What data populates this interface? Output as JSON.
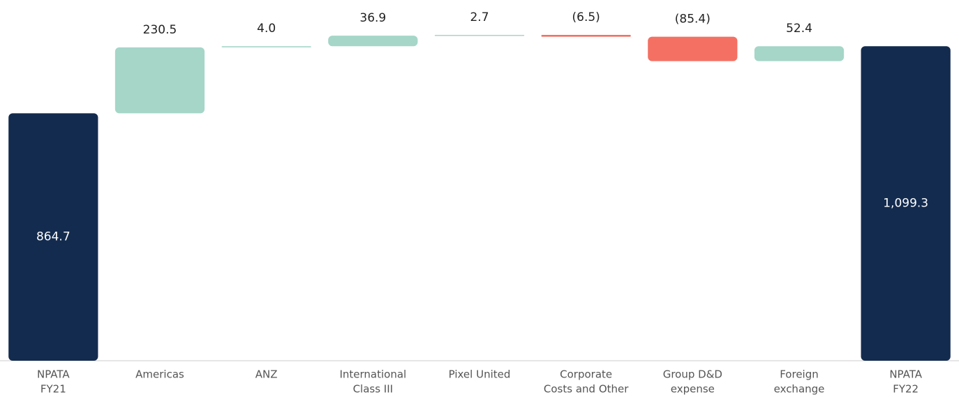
{
  "chart_data": {
    "type": "waterfall",
    "categories": [
      [
        "NPATA",
        "FY21"
      ],
      [
        "Americas"
      ],
      [
        "ANZ"
      ],
      [
        "International",
        "Class III"
      ],
      [
        "Pixel United"
      ],
      [
        "Corporate",
        "Costs and Other"
      ],
      [
        "Group D&D",
        "expense"
      ],
      [
        "Foreign",
        "exchange"
      ],
      [
        "NPATA",
        "FY22"
      ]
    ],
    "values": [
      864.7,
      230.5,
      4.0,
      36.9,
      2.7,
      -6.5,
      -85.4,
      52.4,
      1099.3
    ],
    "value_labels": [
      "864.7",
      "230.5",
      "4.0",
      "36.9",
      "2.7",
      "(6.5)",
      "(85.4)",
      "52.4",
      "1,099.3"
    ],
    "kinds": [
      "total",
      "delta",
      "delta",
      "delta",
      "delta",
      "delta",
      "delta",
      "delta",
      "total"
    ],
    "colors": {
      "total": "#132b4e",
      "increase": "#a5d6c8",
      "decrease": "#f47063"
    }
  }
}
